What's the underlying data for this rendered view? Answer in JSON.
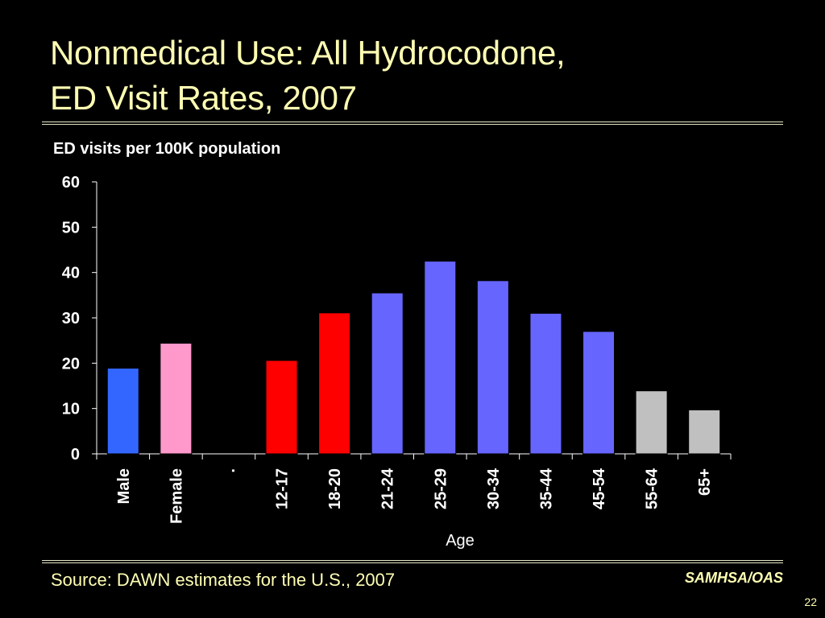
{
  "slide": {
    "title_line1": "Nonmedical Use:  All Hydrocodone,",
    "title_line2": "ED Visit Rates, 2007",
    "source": "Source:  DAWN estimates for the U.S., 2007",
    "org": "SAMHSA/OAS",
    "page_number": "22"
  },
  "chart_data": {
    "type": "bar",
    "ylabel": "ED visits per 100K population",
    "xlabel": "Age",
    "ylim": [
      0,
      60
    ],
    "yticks": [
      0,
      10,
      20,
      30,
      40,
      50,
      60
    ],
    "grid": false,
    "categories": [
      "Male",
      "Female",
      ".",
      "12-17",
      "18-20",
      "21-24",
      "25-29",
      "30-34",
      "35-44",
      "45-54",
      "55-64",
      "65+"
    ],
    "values": [
      18.9,
      24.4,
      null,
      20.6,
      31.1,
      35.5,
      42.5,
      38.2,
      31.0,
      27.0,
      13.9,
      9.7
    ],
    "colors": [
      "#3366ff",
      "#ff99cc",
      "#000000",
      "#ff0000",
      "#ff0000",
      "#6666ff",
      "#6666ff",
      "#6666ff",
      "#6666ff",
      "#6666ff",
      "#c0c0c0",
      "#c0c0c0"
    ]
  }
}
